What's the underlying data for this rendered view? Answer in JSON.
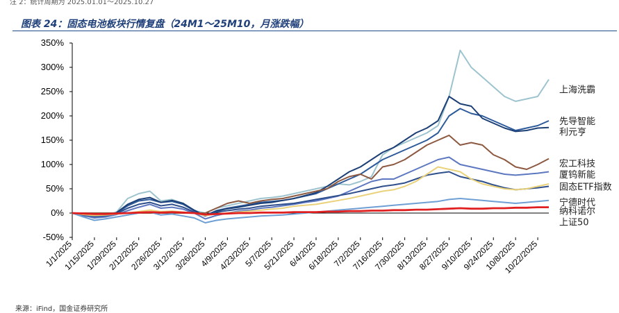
{
  "note": "注 2：统计周期为 2025.01.01～2025.10.27",
  "title": "图表 24：固态电池板块行情复盘（24M1～25M10，月涨跌幅）",
  "source": "来源：iFind，国金证券研究所",
  "chart_data": {
    "type": "line",
    "title": "图表 24：固态电池板块行情复盘（24M1～25M10，月涨跌幅）",
    "ylim": [
      -50,
      350
    ],
    "yticks": [
      -50,
      0,
      50,
      100,
      150,
      200,
      250,
      300,
      350
    ],
    "ytick_labels": [
      "-50%",
      "0%",
      "50%",
      "100%",
      "150%",
      "200%",
      "250%",
      "300%",
      "350%"
    ],
    "x_range": [
      0,
      43
    ],
    "xtick_labels": [
      "1/1/2025",
      "1/15/2025",
      "1/29/2025",
      "2/12/2025",
      "2/26/2025",
      "3/12/2025",
      "3/26/2025",
      "4/9/2025",
      "4/23/2025",
      "5/7/2025",
      "5/21/2025",
      "6/4/2025",
      "6/18/2025",
      "7/2/2025",
      "7/16/2025",
      "7/30/2025",
      "8/13/2025",
      "8/27/2025",
      "9/10/2025",
      "9/24/2025",
      "10/8/2025",
      "10/22/2025"
    ],
    "xtick_index": [
      0,
      2,
      4,
      6,
      8,
      10,
      12,
      14,
      16,
      18,
      20,
      22,
      24,
      26,
      28,
      30,
      32,
      34,
      36,
      38,
      40,
      42
    ],
    "series": [
      {
        "name": "上海洗霸",
        "color": "#9dc3cf",
        "values": [
          0,
          -8,
          -5,
          -4,
          2,
          30,
          40,
          45,
          25,
          28,
          20,
          5,
          0,
          10,
          15,
          20,
          25,
          30,
          32,
          35,
          40,
          45,
          50,
          55,
          60,
          58,
          65,
          75,
          120,
          135,
          145,
          155,
          165,
          180,
          240,
          335,
          300,
          280,
          260,
          240,
          230,
          235,
          240,
          275
        ]
      },
      {
        "name": "先导智能",
        "color": "#2d5a9a",
        "values": [
          0,
          -5,
          -8,
          -6,
          0,
          15,
          25,
          28,
          22,
          24,
          18,
          5,
          -5,
          5,
          10,
          14,
          18,
          22,
          24,
          26,
          30,
          35,
          40,
          50,
          60,
          70,
          80,
          95,
          110,
          120,
          130,
          140,
          150,
          165,
          200,
          215,
          205,
          200,
          190,
          180,
          170,
          175,
          180,
          190
        ]
      },
      {
        "name": "利元亨",
        "color": "#1c3f75",
        "values": [
          0,
          -6,
          -6,
          -5,
          1,
          18,
          28,
          32,
          22,
          26,
          20,
          6,
          -6,
          4,
          9,
          12,
          16,
          20,
          22,
          26,
          30,
          36,
          42,
          55,
          70,
          85,
          95,
          110,
          125,
          135,
          150,
          165,
          175,
          190,
          240,
          225,
          220,
          195,
          185,
          175,
          168,
          170,
          175,
          176
        ]
      },
      {
        "name": "宏工科技",
        "color": "#8c5840",
        "values": [
          0,
          0,
          0,
          0,
          0,
          0,
          0,
          0,
          0,
          0,
          0,
          0,
          0,
          10,
          20,
          25,
          20,
          25,
          28,
          30,
          35,
          40,
          45,
          50,
          65,
          75,
          80,
          70,
          95,
          100,
          110,
          125,
          140,
          150,
          160,
          140,
          145,
          140,
          120,
          110,
          95,
          90,
          100,
          112
        ]
      },
      {
        "name": "厦钨新能",
        "color": "#5c77c0",
        "values": [
          0,
          -5,
          -10,
          -8,
          -3,
          5,
          12,
          18,
          10,
          12,
          8,
          0,
          -12,
          -5,
          0,
          4,
          6,
          10,
          12,
          15,
          18,
          22,
          25,
          30,
          35,
          45,
          55,
          65,
          70,
          70,
          80,
          90,
          100,
          110,
          115,
          100,
          95,
          90,
          85,
          80,
          78,
          80,
          82,
          85
        ]
      },
      {
        "name": "固态ETF指数",
        "color": "#2e4e8c",
        "values": [
          0,
          -4,
          -6,
          -5,
          -1,
          10,
          18,
          22,
          15,
          18,
          12,
          2,
          -6,
          2,
          5,
          8,
          10,
          14,
          16,
          18,
          20,
          24,
          28,
          32,
          36,
          40,
          45,
          50,
          55,
          58,
          62,
          70,
          78,
          82,
          85,
          75,
          70,
          65,
          58,
          52,
          48,
          50,
          52,
          55
        ]
      },
      {
        "name": "宁德时代",
        "color": "#e9d27a",
        "values": [
          0,
          -3,
          -5,
          -4,
          -2,
          0,
          3,
          6,
          3,
          4,
          2,
          0,
          -5,
          -2,
          0,
          2,
          4,
          6,
          8,
          10,
          14,
          16,
          18,
          22,
          26,
          30,
          35,
          40,
          45,
          48,
          55,
          65,
          80,
          95,
          90,
          85,
          70,
          60,
          55,
          50,
          48,
          50,
          55,
          60
        ]
      },
      {
        "name": "纳科诺尔",
        "color": "#6e9fd4",
        "values": [
          0,
          -8,
          -15,
          -12,
          -8,
          -4,
          0,
          2,
          -4,
          -2,
          -6,
          -10,
          -20,
          -15,
          -12,
          -10,
          -8,
          -6,
          -5,
          -4,
          -2,
          0,
          2,
          4,
          6,
          8,
          10,
          12,
          14,
          16,
          18,
          20,
          22,
          24,
          28,
          30,
          28,
          26,
          24,
          22,
          20,
          22,
          24,
          26
        ]
      },
      {
        "name": "上证50",
        "color": "#e02020",
        "width": 2.8,
        "values": [
          0,
          -1,
          -2,
          -2,
          -1,
          0,
          1,
          2,
          1,
          2,
          1,
          0,
          -3,
          -2,
          -1,
          0,
          0,
          1,
          1,
          1,
          2,
          2,
          2,
          3,
          3,
          4,
          4,
          5,
          5,
          6,
          6,
          7,
          7,
          8,
          9,
          10,
          9,
          9,
          10,
          10,
          11,
          11,
          12,
          12
        ]
      }
    ],
    "end_labels": [
      {
        "text": "上海洗霸",
        "value": 255
      },
      {
        "text": "先导智能",
        "value": 190
      },
      {
        "text": "利元亨",
        "value": 168
      },
      {
        "text": "宏工科技",
        "value": 103
      },
      {
        "text": "厦钨新能",
        "value": 80
      },
      {
        "text": "固态ETF指数",
        "value": 55
      },
      {
        "text": "宁德时代",
        "value": 23
      },
      {
        "text": "纳科诺尔",
        "value": 5
      },
      {
        "text": "上证50",
        "value": -18
      }
    ]
  }
}
